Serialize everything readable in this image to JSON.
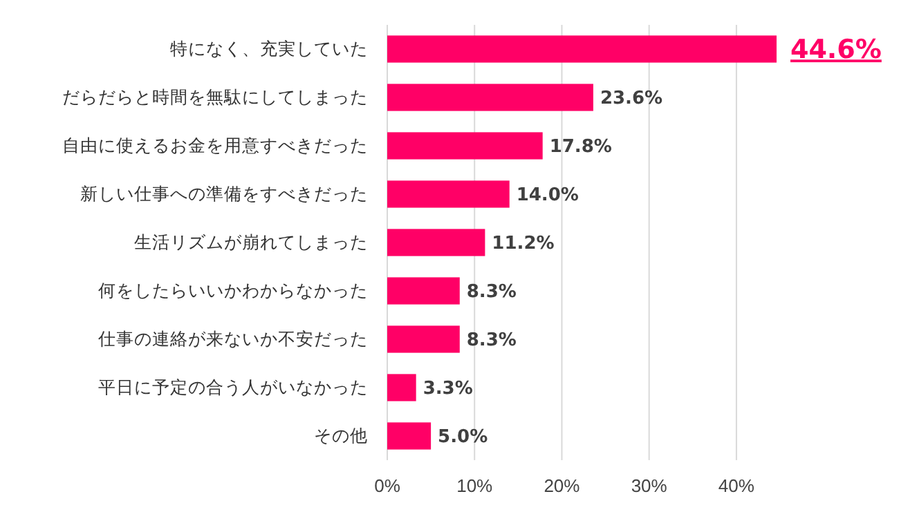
{
  "chart_data": {
    "type": "bar",
    "orientation": "horizontal",
    "categories": [
      "特になく、充実していた",
      "だらだらと時間を無駄にしてしまった",
      "自由に使えるお金を用意すべきだった",
      "新しい仕事への準備をすべきだった",
      "生活リズムが崩れてしまった",
      "何をしたらいいかわからなかった",
      "仕事の連絡が来ないか不安だった",
      "平日に予定の合う人がいなかった",
      "その他"
    ],
    "values": [
      44.6,
      23.6,
      17.8,
      14.0,
      11.2,
      8.3,
      8.3,
      3.3,
      5.0
    ],
    "value_labels": [
      "44.6%",
      "23.6%",
      "17.8%",
      "14.0%",
      "11.2%",
      "8.3%",
      "8.3%",
      "3.3%",
      "5.0%"
    ],
    "color": "#ff0066",
    "xlim": [
      0,
      45
    ],
    "xticks": [
      {
        "value": 0,
        "label": "0%"
      },
      {
        "value": 10,
        "label": "10%"
      },
      {
        "value": 20,
        "label": "20%"
      },
      {
        "value": 30,
        "label": "30%"
      },
      {
        "value": 40,
        "label": "40%"
      }
    ],
    "grid": "x"
  }
}
